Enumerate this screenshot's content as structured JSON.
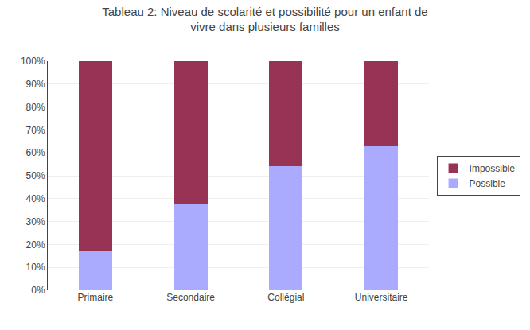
{
  "chart_data": {
    "type": "bar",
    "stacked": true,
    "title": "Tableau 2: Niveau de scolarité et possibilité pour un enfant de\nvivre dans plusieurs familles",
    "categories": [
      "Primaire",
      "Secondaire",
      "Collégial",
      "Universitaire"
    ],
    "series": [
      {
        "name": "Possible",
        "color": "#AAAAFF",
        "values": [
          0.17,
          0.38,
          0.54,
          0.63
        ]
      },
      {
        "name": "Impossible",
        "color": "#993355",
        "values": [
          0.83,
          0.62,
          0.46,
          0.37
        ]
      }
    ],
    "ylim": [
      0,
      1.0
    ],
    "yticks": [
      {
        "value": 0.0,
        "label": "0%"
      },
      {
        "value": 0.1,
        "label": "10%"
      },
      {
        "value": 0.2,
        "label": "20%"
      },
      {
        "value": 0.3,
        "label": "30%"
      },
      {
        "value": 0.4,
        "label": "40%"
      },
      {
        "value": 0.5,
        "label": "50%"
      },
      {
        "value": 0.6,
        "label": "60%"
      },
      {
        "value": 0.7,
        "label": "70%"
      },
      {
        "value": 0.8,
        "label": "80%"
      },
      {
        "value": 0.9,
        "label": "90%"
      },
      {
        "value": 1.0,
        "label": "100%"
      }
    ],
    "grid": true,
    "legend": "right"
  }
}
